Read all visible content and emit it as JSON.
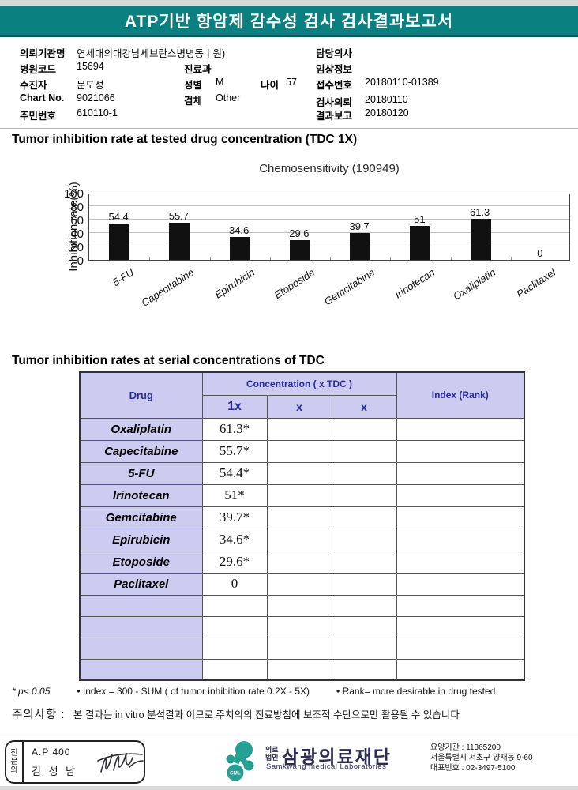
{
  "header": {
    "title": "ATP기반 항암제 감수성 검사 검사결과보고서",
    "bar_color": "#0a8080"
  },
  "patient": {
    "left": [
      {
        "label": "의뢰기관명",
        "value": "연세대의대강남세브란스병병동ㅣ원)"
      },
      {
        "label": "병원코드",
        "value": "15694"
      },
      {
        "label": "수진자",
        "value": "문도성"
      },
      {
        "label": "Chart No.",
        "value": "9021066"
      },
      {
        "label": "주민번호",
        "value": "610110-1"
      }
    ],
    "mid": {
      "dept_label": "진료과",
      "dept": "",
      "sex_label": "성별",
      "sex": "M",
      "age_label": "나이",
      "age": "57",
      "specimen_label": "검체",
      "specimen": "Other"
    },
    "right": [
      {
        "label": "담당의사",
        "value": ""
      },
      {
        "label": "임상정보",
        "value": ""
      },
      {
        "label": "접수번호",
        "value": "20180110-01389"
      },
      {
        "label": "검사의뢰",
        "value": "20180110"
      },
      {
        "label": "결과보고",
        "value": "20180120"
      }
    ]
  },
  "section1": {
    "heading": "Tumor inhibition rate at tested drug concentration (TDC 1X)"
  },
  "chart_data": {
    "type": "bar",
    "title": "Chemosensitivity (190949)",
    "categories": [
      "5-FU",
      "Capecitabine",
      "Epirubicin",
      "Etoposide",
      "Gemcitabine",
      "Irinotecan",
      "Oxaliplatin",
      "Paclitaxel"
    ],
    "values": [
      54.4,
      55.7,
      34.6,
      29.6,
      39.7,
      51,
      61.3,
      0
    ],
    "ylabel": "Inhibition rate(%)",
    "xlabel": "",
    "ylim": [
      0,
      100
    ],
    "yticks": [
      0,
      20,
      40,
      60,
      80,
      100
    ],
    "grid": true,
    "bar_color": "#111111"
  },
  "section2": {
    "heading": "Tumor inhibition rates at serial concentrations of TDC"
  },
  "table": {
    "col_drug": "Drug",
    "col_concentration": "Concentration ( x TDC )",
    "col_index": "Index (Rank)",
    "sub_cols": [
      "1x",
      "x",
      "x"
    ],
    "rows": [
      {
        "drug": "Oxaliplatin",
        "values": [
          "61.3*",
          "",
          ""
        ],
        "index": ""
      },
      {
        "drug": "Capecitabine",
        "values": [
          "55.7*",
          "",
          ""
        ],
        "index": ""
      },
      {
        "drug": "5-FU",
        "values": [
          "54.4*",
          "",
          ""
        ],
        "index": ""
      },
      {
        "drug": "Irinotecan",
        "values": [
          "51*",
          "",
          ""
        ],
        "index": ""
      },
      {
        "drug": "Gemcitabine",
        "values": [
          "39.7*",
          "",
          ""
        ],
        "index": ""
      },
      {
        "drug": "Epirubicin",
        "values": [
          "34.6*",
          "",
          ""
        ],
        "index": ""
      },
      {
        "drug": "Etoposide",
        "values": [
          "29.6*",
          "",
          ""
        ],
        "index": ""
      },
      {
        "drug": "Paclitaxel",
        "values": [
          "0",
          "",
          ""
        ],
        "index": ""
      }
    ],
    "empty_row_count": 4
  },
  "footnotes": [
    "* p< 0.05",
    "• Index = 300 - SUM ( of tumor inhibition rate 0.2X  -  5X)",
    "• Rank= more desirable in drug tested"
  ],
  "caution": {
    "label": "주의사항 :",
    "text": "본 결과는 in vitro 분석결과 이므로 주치의의 진료방침에 보조적 수단으로만 활용될 수 있습니다"
  },
  "footer": {
    "stamp": {
      "role": "전문의",
      "code": "A.P 400",
      "name": "김 성 남"
    },
    "logo_text": "SML",
    "logo_color": "#27a094",
    "company": {
      "prefix_line1": "의료",
      "prefix_line2": "법인",
      "name": "삼광의료재단",
      "name_en": "Samkwang medical Laboratories"
    },
    "contact": [
      "요양기관 : 11365200",
      "서울특별시 서초구 양재동 9-60",
      "대표번호 : 02-3497-5100"
    ]
  }
}
